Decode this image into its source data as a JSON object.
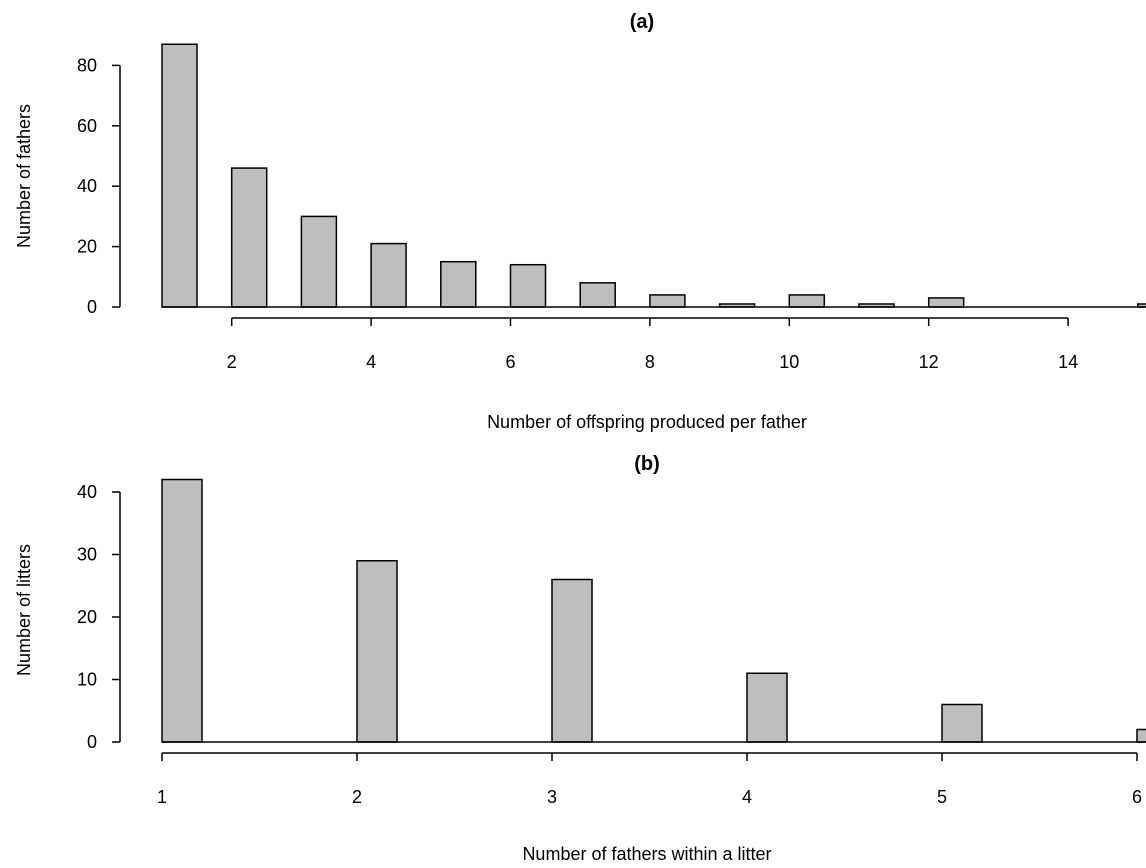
{
  "chart_data": [
    {
      "type": "bar",
      "title": "(a)",
      "xlabel": "Number of offspring produced per father",
      "ylabel": "Number of fathers",
      "x": [
        1,
        2,
        3,
        4,
        5,
        6,
        7,
        8,
        9,
        10,
        11,
        12,
        13,
        14,
        15
      ],
      "values": [
        87,
        46,
        30,
        21,
        15,
        14,
        8,
        4,
        1,
        4,
        1,
        3,
        0,
        0,
        1
      ],
      "xticks": [
        "2",
        "4",
        "6",
        "8",
        "10",
        "12",
        "14"
      ],
      "yticks": [
        "0",
        "20",
        "40",
        "60",
        "80"
      ],
      "bar_color": "#bebebe"
    },
    {
      "type": "bar",
      "title": "(b)",
      "xlabel": "Number of fathers within a litter",
      "ylabel": "Number of litters",
      "x": [
        1,
        2,
        3,
        4,
        5,
        6
      ],
      "values": [
        42,
        29,
        26,
        11,
        6,
        2
      ],
      "xticks": [
        "1",
        "2",
        "3",
        "4",
        "5",
        "6"
      ],
      "yticks": [
        "0",
        "10",
        "20",
        "30",
        "40"
      ],
      "bar_color": "#bebebe"
    }
  ]
}
